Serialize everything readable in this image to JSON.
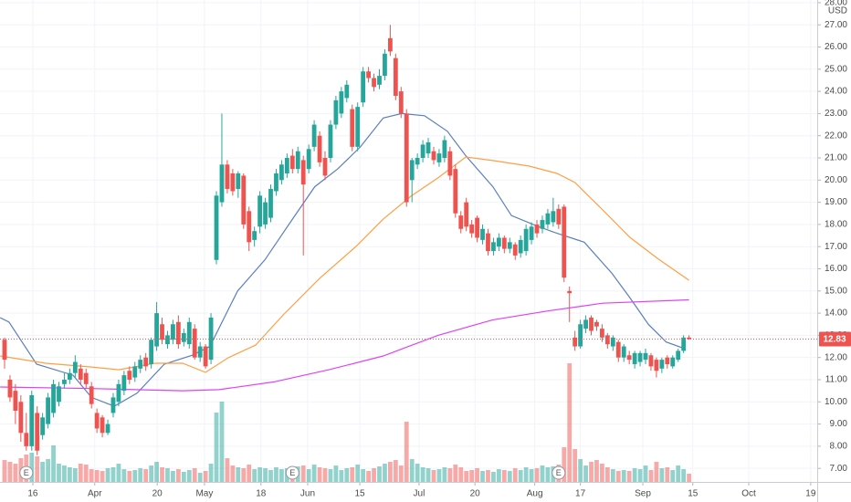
{
  "chart_data": {
    "type": "candlestick",
    "ohlc": [
      [
        12.8,
        12.9,
        11.5,
        11.9
      ],
      [
        11.0,
        11.2,
        10.0,
        10.2
      ],
      [
        10.5,
        10.8,
        9.0,
        9.6
      ],
      [
        10.0,
        10.3,
        8.2,
        8.6
      ],
      [
        8.6,
        9.5,
        7.8,
        8.0
      ],
      [
        8.0,
        10.5,
        7.8,
        10.3
      ],
      [
        9.5,
        9.8,
        7.6,
        7.8
      ],
      [
        8.5,
        9.5,
        8.3,
        9.3
      ],
      [
        9.0,
        10.4,
        8.8,
        10.2
      ],
      [
        9.5,
        11.0,
        9.3,
        10.8
      ],
      [
        10.0,
        10.9,
        9.8,
        10.7
      ],
      [
        10.8,
        11.3,
        10.6,
        11.0
      ],
      [
        11.0,
        11.5,
        10.8,
        11.3
      ],
      [
        11.3,
        12.1,
        11.1,
        11.8
      ],
      [
        11.5,
        11.7,
        10.8,
        11.0
      ],
      [
        11.3,
        11.5,
        10.6,
        10.8
      ],
      [
        10.7,
        10.9,
        9.7,
        9.9
      ],
      [
        9.5,
        9.7,
        8.6,
        8.8
      ],
      [
        9.3,
        9.4,
        8.4,
        8.6
      ],
      [
        8.6,
        9.2,
        8.5,
        9.0
      ],
      [
        9.5,
        10.4,
        9.3,
        10.2
      ],
      [
        10.0,
        11.0,
        9.8,
        10.8
      ],
      [
        10.5,
        11.4,
        10.3,
        11.2
      ],
      [
        11.4,
        11.6,
        10.8,
        11.0
      ],
      [
        11.1,
        11.8,
        10.9,
        11.6
      ],
      [
        11.5,
        12.1,
        11.3,
        11.9
      ],
      [
        12.0,
        12.2,
        11.4,
        11.6
      ],
      [
        11.7,
        12.9,
        11.5,
        12.8
      ],
      [
        12.5,
        14.5,
        12.3,
        14.0
      ],
      [
        13.5,
        13.8,
        12.6,
        12.8
      ],
      [
        12.6,
        13.2,
        12.4,
        13.0
      ],
      [
        12.8,
        13.7,
        12.6,
        13.5
      ],
      [
        13.6,
        13.9,
        12.4,
        12.6
      ],
      [
        12.7,
        13.3,
        12.5,
        13.1
      ],
      [
        12.6,
        13.8,
        12.4,
        13.6
      ],
      [
        13.3,
        13.5,
        11.9,
        12.0
      ],
      [
        12.0,
        12.7,
        11.8,
        12.5
      ],
      [
        12.5,
        12.6,
        11.5,
        11.6
      ],
      [
        11.9,
        14.0,
        11.7,
        13.8
      ],
      [
        16.4,
        19.5,
        16.2,
        19.3
      ],
      [
        19.0,
        23.0,
        18.8,
        20.7
      ],
      [
        20.7,
        20.9,
        19.4,
        19.6
      ],
      [
        20.3,
        20.5,
        19.3,
        19.5
      ],
      [
        19.6,
        20.4,
        19.2,
        20.3
      ],
      [
        20.2,
        20.3,
        17.8,
        18.0
      ],
      [
        18.6,
        18.8,
        16.8,
        17.2
      ],
      [
        17.3,
        17.9,
        17.0,
        17.7
      ],
      [
        17.9,
        19.5,
        17.6,
        19.3
      ],
      [
        18.0,
        19.2,
        17.8,
        19.0
      ],
      [
        18.3,
        19.8,
        18.1,
        19.6
      ],
      [
        19.5,
        20.5,
        19.3,
        20.3
      ],
      [
        20.0,
        20.9,
        19.8,
        20.7
      ],
      [
        20.3,
        21.2,
        20.1,
        21.0
      ],
      [
        21.1,
        21.4,
        20.3,
        20.5
      ],
      [
        20.5,
        21.5,
        20.3,
        21.3
      ],
      [
        20.9,
        21.1,
        16.6,
        19.8
      ],
      [
        20.5,
        21.6,
        20.3,
        21.4
      ],
      [
        21.5,
        22.7,
        21.3,
        22.5
      ],
      [
        22.0,
        22.2,
        20.6,
        20.8
      ],
      [
        21.0,
        21.3,
        20.0,
        20.2
      ],
      [
        21.0,
        22.7,
        20.8,
        22.5
      ],
      [
        22.5,
        23.8,
        22.3,
        23.6
      ],
      [
        23.0,
        24.2,
        22.8,
        24.0
      ],
      [
        23.7,
        24.5,
        23.5,
        24.3
      ],
      [
        23.2,
        23.4,
        21.3,
        21.5
      ],
      [
        21.5,
        23.5,
        21.3,
        23.3
      ],
      [
        23.5,
        25.1,
        23.3,
        24.9
      ],
      [
        24.9,
        25.1,
        24.4,
        24.6
      ],
      [
        24.6,
        24.8,
        24.0,
        24.2
      ],
      [
        24.3,
        25.0,
        24.1,
        24.7
      ],
      [
        24.7,
        25.9,
        24.5,
        25.7
      ],
      [
        26.4,
        27.0,
        25.6,
        25.8
      ],
      [
        25.5,
        25.7,
        23.6,
        23.8
      ],
      [
        24.0,
        24.2,
        22.8,
        23.0
      ],
      [
        23.0,
        23.2,
        18.8,
        19.0
      ],
      [
        20.0,
        21.0,
        19.0,
        20.9
      ],
      [
        20.7,
        21.2,
        20.5,
        21.0
      ],
      [
        21.0,
        21.8,
        20.8,
        21.6
      ],
      [
        21.2,
        21.9,
        21.0,
        21.7
      ],
      [
        21.3,
        21.5,
        20.7,
        20.9
      ],
      [
        20.8,
        21.4,
        20.6,
        21.2
      ],
      [
        21.0,
        22.0,
        20.8,
        21.8
      ],
      [
        21.3,
        21.5,
        20.0,
        20.2
      ],
      [
        20.5,
        20.7,
        18.3,
        18.5
      ],
      [
        18.4,
        18.6,
        17.6,
        17.8
      ],
      [
        19.0,
        19.2,
        17.7,
        17.9
      ],
      [
        18.0,
        18.2,
        17.4,
        17.6
      ],
      [
        18.3,
        18.4,
        17.2,
        17.4
      ],
      [
        17.3,
        18.0,
        17.1,
        17.8
      ],
      [
        17.6,
        17.8,
        16.6,
        16.8
      ],
      [
        16.8,
        17.4,
        16.6,
        17.2
      ],
      [
        17.0,
        17.6,
        16.8,
        17.4
      ],
      [
        17.4,
        17.5,
        16.7,
        16.9
      ],
      [
        16.9,
        17.4,
        16.7,
        17.2
      ],
      [
        17.1,
        17.2,
        16.4,
        16.6
      ],
      [
        16.7,
        17.5,
        16.5,
        17.3
      ],
      [
        16.8,
        18.0,
        16.6,
        17.8
      ],
      [
        17.3,
        18.1,
        17.1,
        17.9
      ],
      [
        18.0,
        18.2,
        17.4,
        17.6
      ],
      [
        17.8,
        18.4,
        17.6,
        18.2
      ],
      [
        18.0,
        18.7,
        17.8,
        18.5
      ],
      [
        18.1,
        19.2,
        17.9,
        18.6
      ],
      [
        18.7,
        18.9,
        17.8,
        18.0
      ],
      [
        18.8,
        18.9,
        15.4,
        15.6
      ],
      [
        15.0,
        15.2,
        13.6,
        14.9
      ],
      [
        12.9,
        13.2,
        12.3,
        12.5
      ],
      [
        12.5,
        13.7,
        12.4,
        13.5
      ],
      [
        13.3,
        13.9,
        13.1,
        13.7
      ],
      [
        13.8,
        13.9,
        13.0,
        13.2
      ],
      [
        13.6,
        13.7,
        13.2,
        13.4
      ],
      [
        13.3,
        13.5,
        12.7,
        12.9
      ],
      [
        13.0,
        13.1,
        12.4,
        12.6
      ],
      [
        12.5,
        13.0,
        12.3,
        12.9
      ],
      [
        12.7,
        12.8,
        11.8,
        12.0
      ],
      [
        12.0,
        12.6,
        11.8,
        12.5
      ],
      [
        12.1,
        12.3,
        11.7,
        11.9
      ],
      [
        11.7,
        12.3,
        11.5,
        12.2
      ],
      [
        11.8,
        12.3,
        11.6,
        12.2
      ],
      [
        11.9,
        12.4,
        11.7,
        12.2
      ],
      [
        12.1,
        12.2,
        11.4,
        11.6
      ],
      [
        11.9,
        12.0,
        11.1,
        11.4
      ],
      [
        11.5,
        12.0,
        11.3,
        11.9
      ],
      [
        12.0,
        12.1,
        11.5,
        11.7
      ],
      [
        11.6,
        12.1,
        11.5,
        12.0
      ],
      [
        11.9,
        12.4,
        11.8,
        12.3
      ],
      [
        12.3,
        13.0,
        12.2,
        12.9
      ],
      [
        12.9,
        13.0,
        12.8,
        12.83
      ]
    ],
    "volume": [
      2.4,
      2.2,
      2.0,
      2.6,
      3.0,
      3.2,
      2.8,
      2.2,
      2.5,
      4.0,
      2.0,
      1.8,
      1.6,
      1.5,
      2.0,
      1.9,
      1.4,
      1.3,
      1.2,
      1.5,
      1.6,
      2.0,
      1.4,
      1.2,
      1.3,
      1.5,
      1.4,
      1.8,
      2.2,
      1.6,
      1.5,
      1.2,
      1.4,
      1.1,
      1.3,
      1.5,
      1.0,
      1.2,
      2.0,
      7.6,
      8.8,
      2.6,
      1.8,
      1.6,
      1.5,
      1.9,
      1.4,
      1.6,
      1.5,
      1.3,
      1.6,
      1.4,
      1.5,
      1.2,
      1.7,
      1.8,
      1.4,
      1.9,
      1.6,
      1.5,
      1.4,
      1.8,
      1.3,
      1.5,
      1.6,
      1.9,
      1.4,
      1.2,
      1.5,
      1.7,
      2.0,
      2.2,
      2.4,
      1.8,
      6.6,
      2.5,
      2.0,
      1.6,
      1.5,
      1.3,
      1.4,
      1.6,
      1.5,
      1.9,
      1.6,
      1.2,
      1.3,
      1.5,
      1.2,
      1.3,
      1.1,
      1.4,
      1.3,
      1.2,
      1.5,
      1.3,
      1.6,
      1.4,
      1.5,
      1.8,
      1.6,
      1.7,
      1.9,
      3.8,
      13.0,
      3.6,
      2.5,
      1.8,
      2.2,
      2.4,
      2.0,
      1.6,
      1.4,
      1.2,
      1.3,
      1.2,
      1.5,
      1.4,
      1.8,
      1.3,
      2.2,
      1.5,
      1.6,
      1.3,
      1.8,
      1.4,
      0.9
    ],
    "volume_lim": [
      0,
      14
    ],
    "up_color": "#26a69a",
    "down_color": "#ef5350",
    "lines": [
      {
        "color": "#5b7fbe",
        "x": [
          -0.8,
          0.8,
          5.9,
          12.6,
          16,
          20.2,
          24.4,
          29.4,
          34.5,
          37.8,
          42.9,
          47.9,
          52.9,
          57.1,
          61.3,
          65.5,
          69.7,
          73.1,
          77.3,
          81.5,
          84.9,
          89.9,
          93.3,
          98.3,
          101.7,
          106.7,
          111.8,
          115.1,
          118.5,
          121.8,
          125.2
        ],
        "values": [
          13.8,
          13.6,
          11.7,
          11.2,
          10.2,
          9.8,
          10.4,
          11.7,
          12.1,
          12.5,
          15.0,
          16.4,
          18.2,
          19.7,
          20.5,
          21.5,
          22.8,
          23.0,
          22.9,
          22.2,
          21.1,
          19.7,
          18.4,
          17.9,
          17.6,
          17.2,
          15.8,
          14.7,
          13.5,
          12.7,
          12.4
        ]
      },
      {
        "color": "#ff9f43",
        "x": [
          -0.8,
          7.6,
          16,
          21,
          27.7,
          32.8,
          37,
          41.2,
          46.2,
          51.3,
          58,
          64.7,
          69.7,
          74.8,
          79.8,
          84.9,
          89.9,
          96.6,
          101.7,
          105,
          110.1,
          115.1,
          120.2,
          126
        ],
        "values": [
          12.07,
          11.74,
          11.57,
          11.45,
          11.74,
          11.74,
          11.33,
          11.99,
          12.56,
          13.92,
          15.57,
          17.01,
          18.24,
          19.27,
          20.1,
          21.04,
          20.88,
          20.63,
          20.3,
          19.89,
          18.66,
          17.42,
          16.47,
          15.48
        ]
      },
      {
        "color": "#e040fb",
        "x": [
          -0.8,
          16,
          32.8,
          39.5,
          49.6,
          59.7,
          69.7,
          79.8,
          89.9,
          100,
          110.1,
          126
        ],
        "values": [
          10.67,
          10.6,
          10.5,
          10.55,
          10.9,
          11.45,
          12.07,
          13.0,
          13.7,
          14.1,
          14.45,
          14.6
        ]
      }
    ],
    "xlim": [
      -0.84,
      149.6
    ],
    "xticks": [
      {
        "value": 5.2,
        "label": "16"
      },
      {
        "value": 16.6,
        "label": "Apr"
      },
      {
        "value": 28.1,
        "label": "20"
      },
      {
        "value": 36.8,
        "label": "May"
      },
      {
        "value": 47.2,
        "label": "18"
      },
      {
        "value": 55.8,
        "label": "Jun"
      },
      {
        "value": 65.4,
        "label": "15"
      },
      {
        "value": 76.3,
        "label": "Jul"
      },
      {
        "value": 86.6,
        "label": "20"
      },
      {
        "value": 97.6,
        "label": "Aug"
      },
      {
        "value": 106.0,
        "label": "17"
      },
      {
        "value": 117.5,
        "label": "Sep"
      },
      {
        "value": 126.7,
        "label": "15"
      },
      {
        "value": 137.0,
        "label": "Oct"
      },
      {
        "value": 148.4,
        "label": "19"
      }
    ],
    "ylim": [
      6.39,
      28.12
    ],
    "yticks": [
      {
        "value": 7,
        "label": "7.00"
      },
      {
        "value": 8,
        "label": "8.00"
      },
      {
        "value": 9,
        "label": "9.00"
      },
      {
        "value": 10,
        "label": "10.00"
      },
      {
        "value": 11,
        "label": "11.00"
      },
      {
        "value": 12,
        "label": "12.00"
      },
      {
        "value": 13,
        "label": "13.00"
      },
      {
        "value": 14,
        "label": "14.00"
      },
      {
        "value": 15,
        "label": "15.00"
      },
      {
        "value": 16,
        "label": "16.00"
      },
      {
        "value": 17,
        "label": "17.00"
      },
      {
        "value": 18,
        "label": "18.00"
      },
      {
        "value": 19,
        "label": "19.00"
      },
      {
        "value": 20,
        "label": "20.00"
      },
      {
        "value": 21,
        "label": "21.00"
      },
      {
        "value": 22,
        "label": "22.00"
      },
      {
        "value": 23,
        "label": "23.00"
      },
      {
        "value": 24,
        "label": "24.00"
      },
      {
        "value": 25,
        "label": "25.00"
      },
      {
        "value": 26,
        "label": "26.00"
      },
      {
        "value": 27,
        "label": "27.00"
      },
      {
        "value": 28,
        "label": "28.00"
      }
    ],
    "grid": true,
    "currency": "USD",
    "last_price": 12.83,
    "events": [
      {
        "x": 4,
        "label": "E"
      },
      {
        "x": 53,
        "label": "E"
      },
      {
        "x": 102,
        "label": "E"
      }
    ]
  }
}
